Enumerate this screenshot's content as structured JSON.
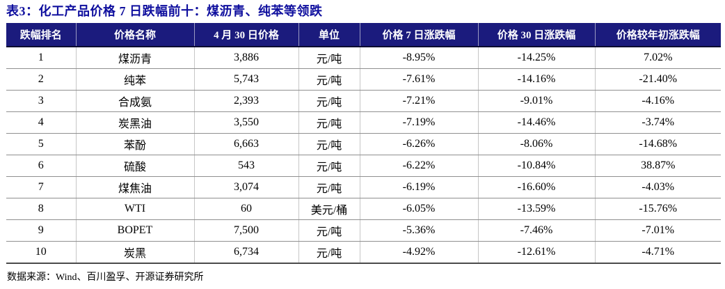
{
  "title": "表3：化工产品价格 7 日跌幅前十：煤沥青、纯苯等领跌",
  "table": {
    "headers": [
      "跌幅排名",
      "价格名称",
      "4 月 30 日价格",
      "单位",
      "价格 7 日涨跌幅",
      "价格 30 日涨跌幅",
      "价格较年初涨跌幅"
    ],
    "rows": [
      [
        "1",
        "煤沥青",
        "3,886",
        "元/吨",
        "-8.95%",
        "-14.25%",
        "7.02%"
      ],
      [
        "2",
        "纯苯",
        "5,743",
        "元/吨",
        "-7.61%",
        "-14.16%",
        "-21.40%"
      ],
      [
        "3",
        "合成氨",
        "2,393",
        "元/吨",
        "-7.21%",
        "-9.01%",
        "-4.16%"
      ],
      [
        "4",
        "炭黑油",
        "3,550",
        "元/吨",
        "-7.19%",
        "-14.46%",
        "-3.74%"
      ],
      [
        "5",
        "苯酚",
        "6,663",
        "元/吨",
        "-6.26%",
        "-8.06%",
        "-14.68%"
      ],
      [
        "6",
        "硫酸",
        "543",
        "元/吨",
        "-6.22%",
        "-10.84%",
        "38.87%"
      ],
      [
        "7",
        "煤焦油",
        "3,074",
        "元/吨",
        "-6.19%",
        "-16.60%",
        "-4.03%"
      ],
      [
        "8",
        "WTI",
        "60",
        "美元/桶",
        "-6.05%",
        "-13.59%",
        "-15.76%"
      ],
      [
        "9",
        "BOPET",
        "7,500",
        "元/吨",
        "-5.36%",
        "-7.46%",
        "-7.01%"
      ],
      [
        "10",
        "炭黑",
        "6,734",
        "元/吨",
        "-4.92%",
        "-12.61%",
        "-4.71%"
      ]
    ]
  },
  "footer": {
    "source_label": "数据来源：Wind、百川盈孚、开源证券研究所"
  },
  "colors": {
    "header_bg": "#1b1b7d",
    "header_text": "#ffffff",
    "title_text": "#0f0f9e",
    "body_text": "#000000",
    "row_divider": "#8f8f8f",
    "column_divider": "#c6c6c6"
  }
}
